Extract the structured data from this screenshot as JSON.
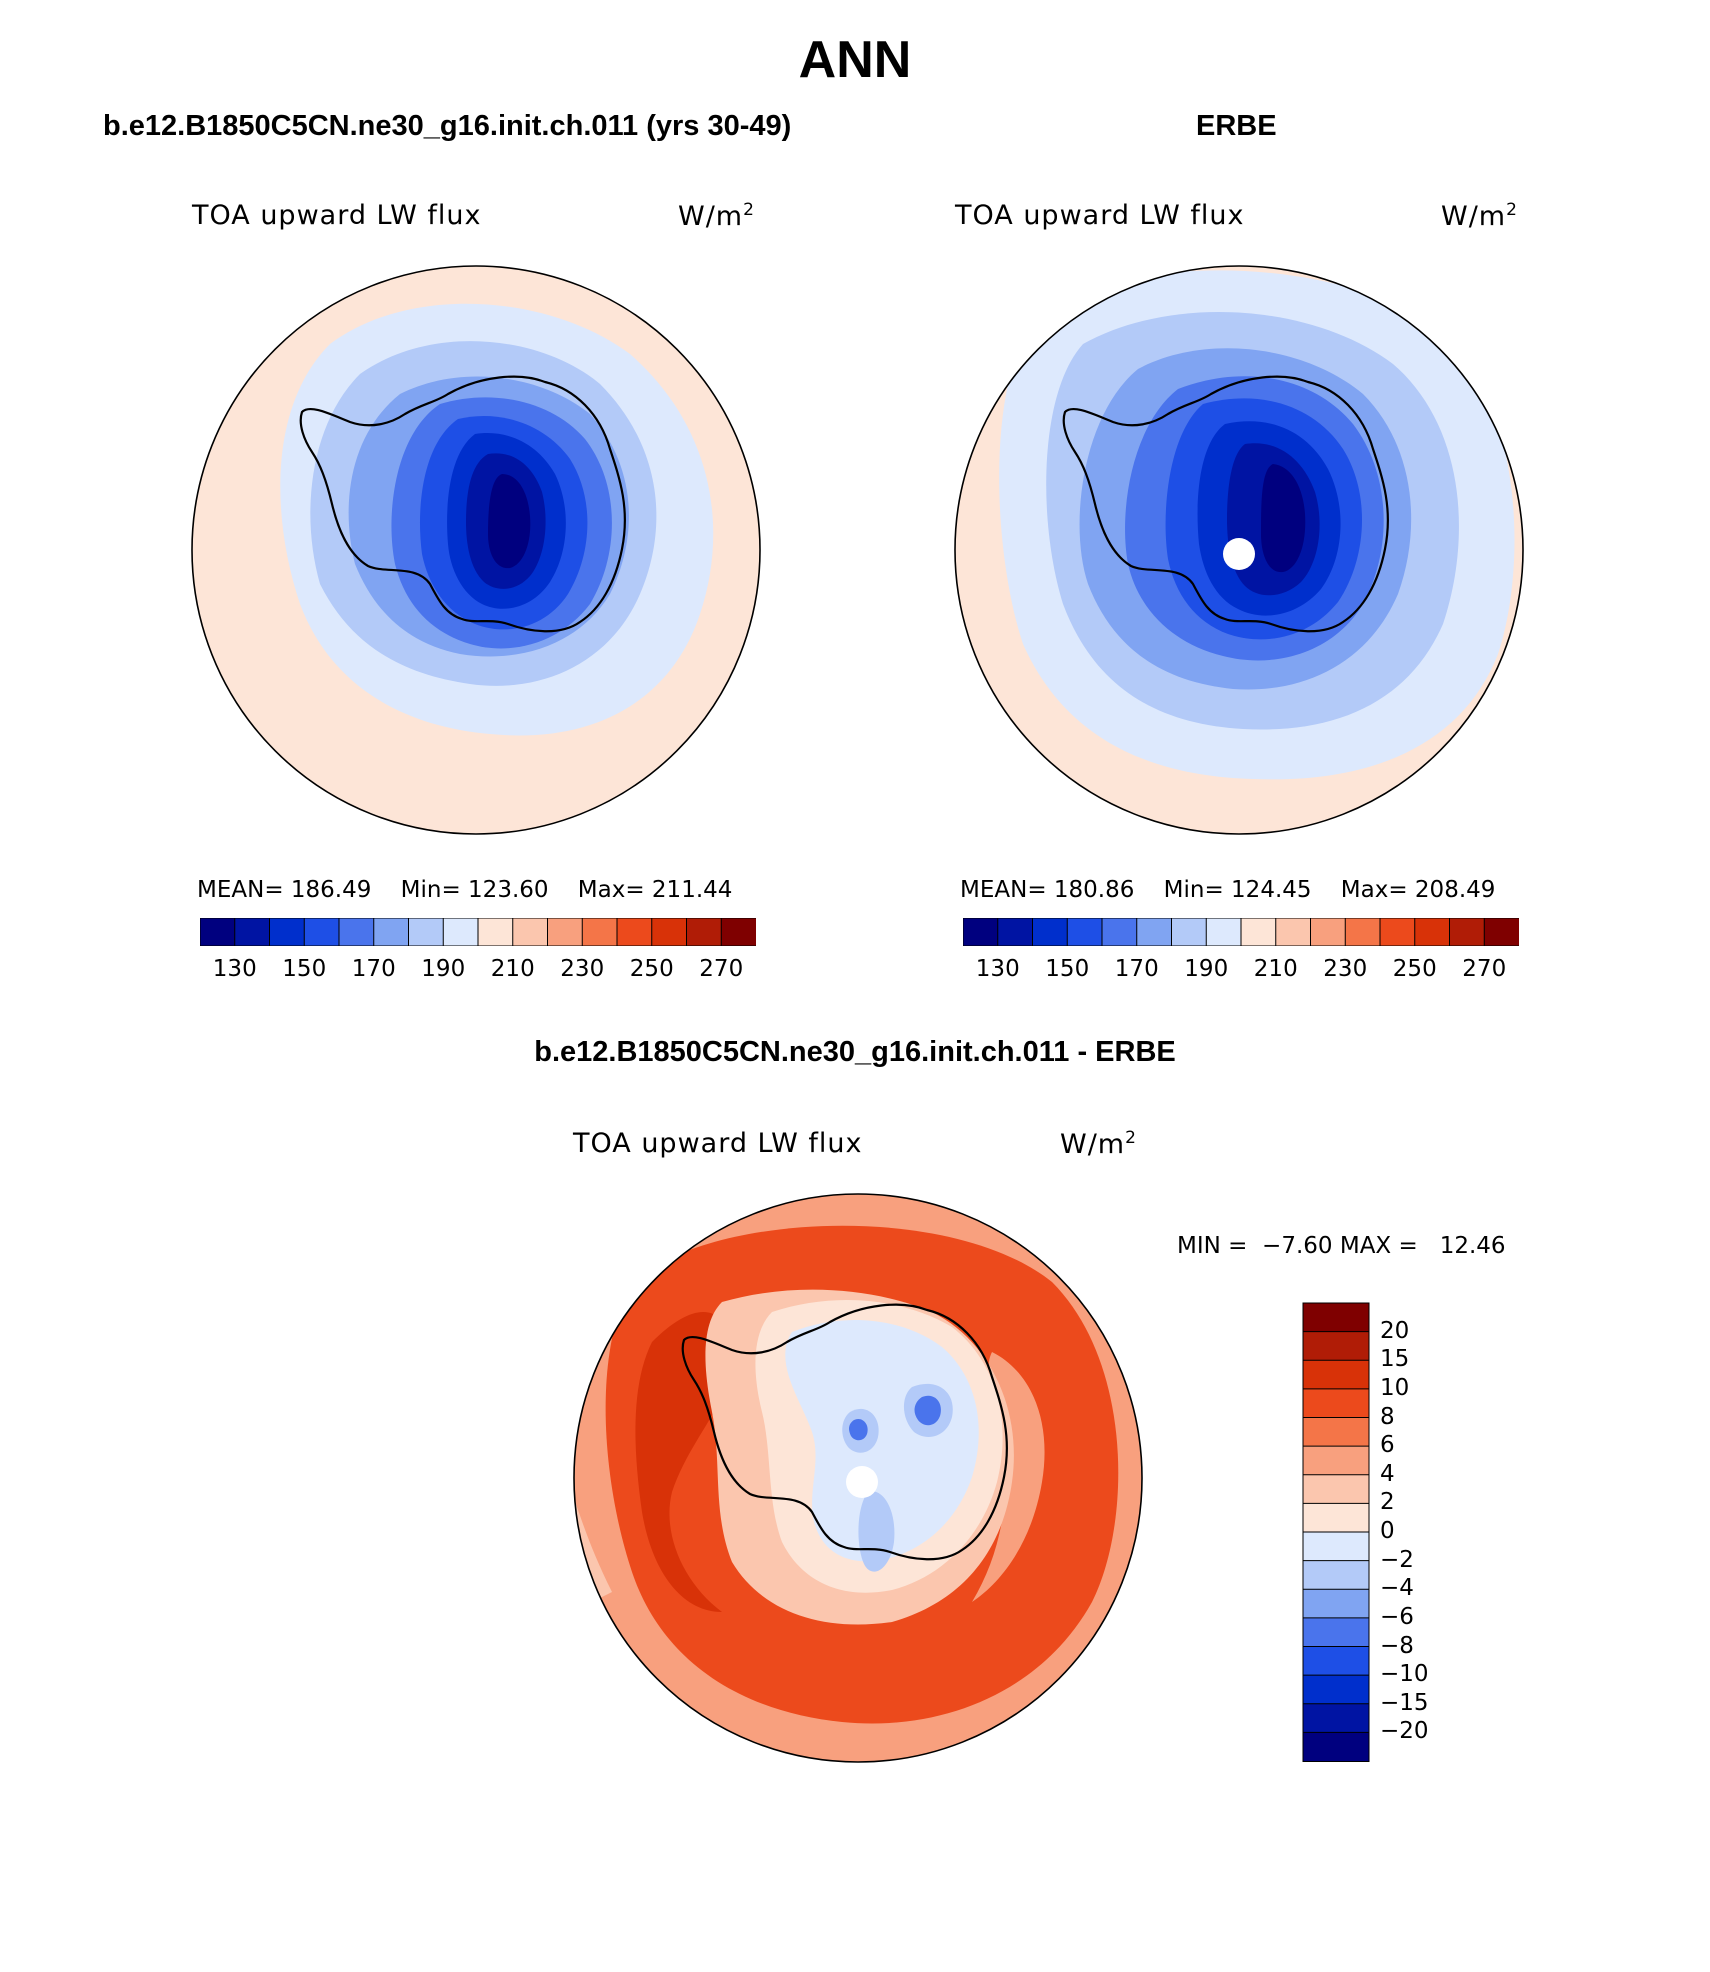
{
  "title": "ANN",
  "panels": [
    {
      "title": "b.e12.B1850C5CN.ne30_g16.init.ch.011 (yrs 30-49)",
      "variable": "TOA upward LW flux",
      "units": "W/m",
      "units_exp": "2",
      "stats": {
        "mean_label": "MEAN=",
        "mean": "186.49",
        "min_label": "Min=",
        "min": "123.60",
        "max_label": "Max=",
        "max": "211.44"
      }
    },
    {
      "title": "ERBE",
      "variable": "TOA upward LW flux",
      "units": "W/m",
      "units_exp": "2",
      "stats": {
        "mean_label": "MEAN=",
        "mean": "180.86",
        "min_label": "Min=",
        "min": "124.45",
        "max_label": "Max=",
        "max": "208.49"
      }
    },
    {
      "title": "b.e12.B1850C5CN.ne30_g16.init.ch.011 - ERBE",
      "variable": "TOA upward LW flux",
      "units": "W/m",
      "units_exp": "2",
      "stats": {
        "min_label": "MIN =",
        "min": "−7.60",
        "max_label": "MAX =",
        "max": "12.46"
      }
    }
  ],
  "abs_colorbar": {
    "ticks": [
      "130",
      "150",
      "170",
      "190",
      "210",
      "230",
      "250",
      "270"
    ],
    "colors": [
      "#00007f",
      "#0014a3",
      "#002fcc",
      "#1e4fe6",
      "#4a74ec",
      "#80a4f2",
      "#b3caf8",
      "#dde9fd",
      "#fde5d7",
      "#fbc6ae",
      "#f8a07e",
      "#f47548",
      "#ec4a1c",
      "#d83208",
      "#b01c06",
      "#7f0000"
    ]
  },
  "diff_colorbar": {
    "ticks": [
      "20",
      "15",
      "10",
      "8",
      "6",
      "4",
      "2",
      "0",
      "−2",
      "−4",
      "−6",
      "−8",
      "−10",
      "−15",
      "−20"
    ],
    "colors": [
      "#7f0000",
      "#b01c06",
      "#d83208",
      "#ec4a1c",
      "#f47548",
      "#f8a07e",
      "#fbc6ae",
      "#fde5d7",
      "#dde9fd",
      "#b3caf8",
      "#80a4f2",
      "#4a74ec",
      "#1e4fe6",
      "#002fcc",
      "#0014a3",
      "#00007f"
    ]
  },
  "map": {
    "projection": "south-polar-stereographic",
    "colors": {
      "outer": "#fde5d7",
      "ring1": "#dde9fd",
      "ring2": "#b3caf8",
      "ring3": "#80a4f2",
      "ring4": "#4a74ec",
      "ring5": "#1e4fe6",
      "ring6": "#002fcc",
      "core": "#0014a3",
      "center": "#00007f",
      "diff_outer": "#f8a07e",
      "diff_ring": "#ec4a1c",
      "diff_dark": "#d83208",
      "diff_inner": "#fbc6ae",
      "diff_land": "#fde5d7",
      "diff_neg1": "#dde9fd",
      "diff_neg2": "#b3caf8",
      "diff_neg3": "#4a74ec"
    }
  }
}
